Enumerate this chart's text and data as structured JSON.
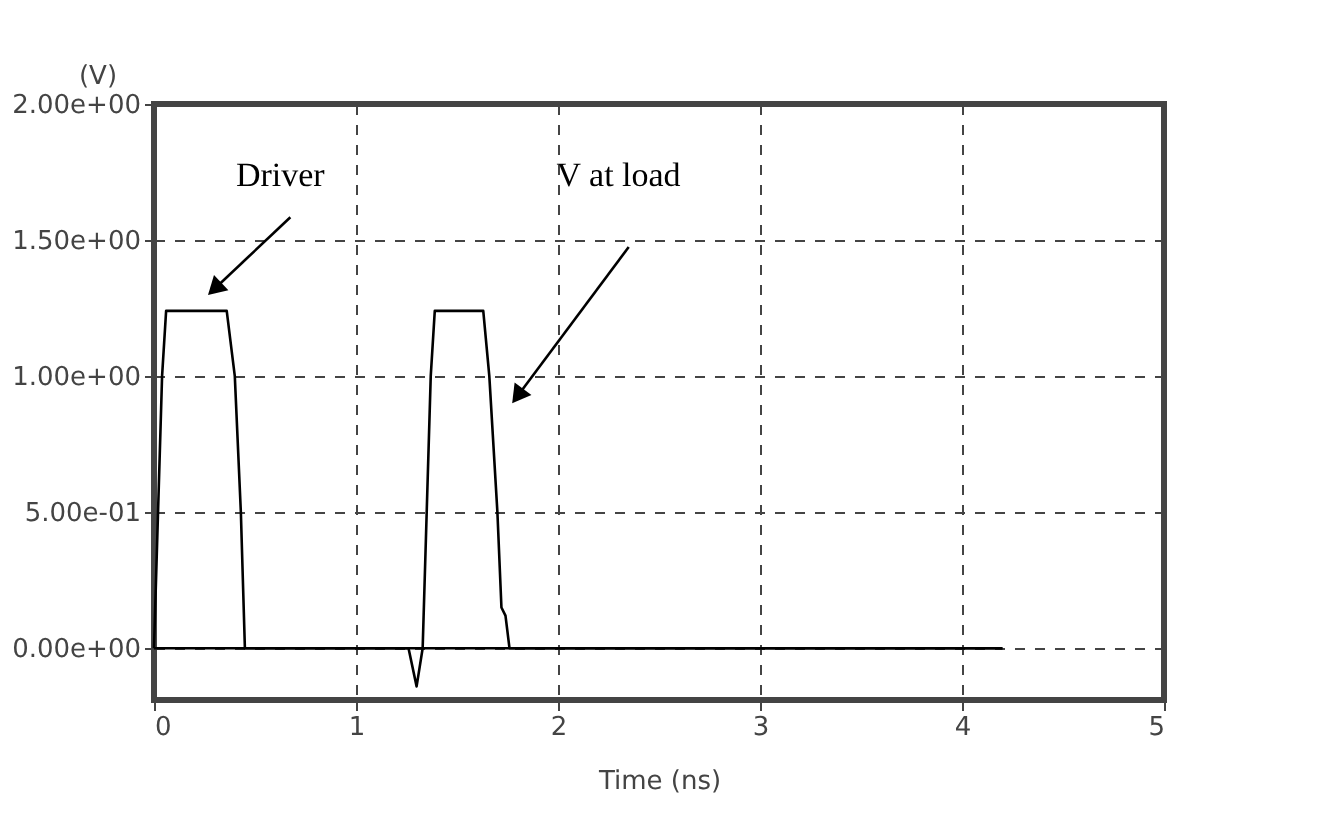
{
  "chart_data": {
    "type": "line",
    "xlabel": "Time (ns)",
    "ylabel": "(V)",
    "xlim": [
      0,
      5
    ],
    "xticks": [
      0,
      1,
      2,
      3,
      4,
      5
    ],
    "ylim": [
      -0.19,
      2.0
    ],
    "yticks": [
      {
        "value": 0,
        "label": "0.00e+00"
      },
      {
        "value": 0.5,
        "label": "5.00e-01"
      },
      {
        "value": 1.0,
        "label": "1.00e+00"
      },
      {
        "value": 1.5,
        "label": "1.50e+00"
      },
      {
        "value": 2.0,
        "label": "2.00e+00"
      }
    ],
    "grid": true,
    "line_style": "solid",
    "marker": "none",
    "series": [
      {
        "color": "#000000",
        "x": [
          0,
          0.02,
          0.04,
          0.06,
          0.36,
          0.4,
          0.43,
          0.45,
          4.2
        ],
        "values": [
          0,
          0.5,
          1.0,
          1.24,
          1.24,
          1.0,
          0.5,
          0,
          0
        ]
      },
      {
        "color": "#000000",
        "x": [
          0,
          1.26,
          1.3,
          1.33,
          1.35,
          1.37,
          1.39,
          1.63,
          1.66,
          1.7,
          1.72,
          1.74,
          1.76,
          4.2
        ],
        "values": [
          0,
          0,
          -0.14,
          0,
          0.5,
          1.0,
          1.24,
          1.24,
          1.0,
          0.5,
          0.15,
          0.12,
          0,
          0
        ]
      }
    ],
    "annotations": [
      "Driver",
      "V at load"
    ]
  }
}
